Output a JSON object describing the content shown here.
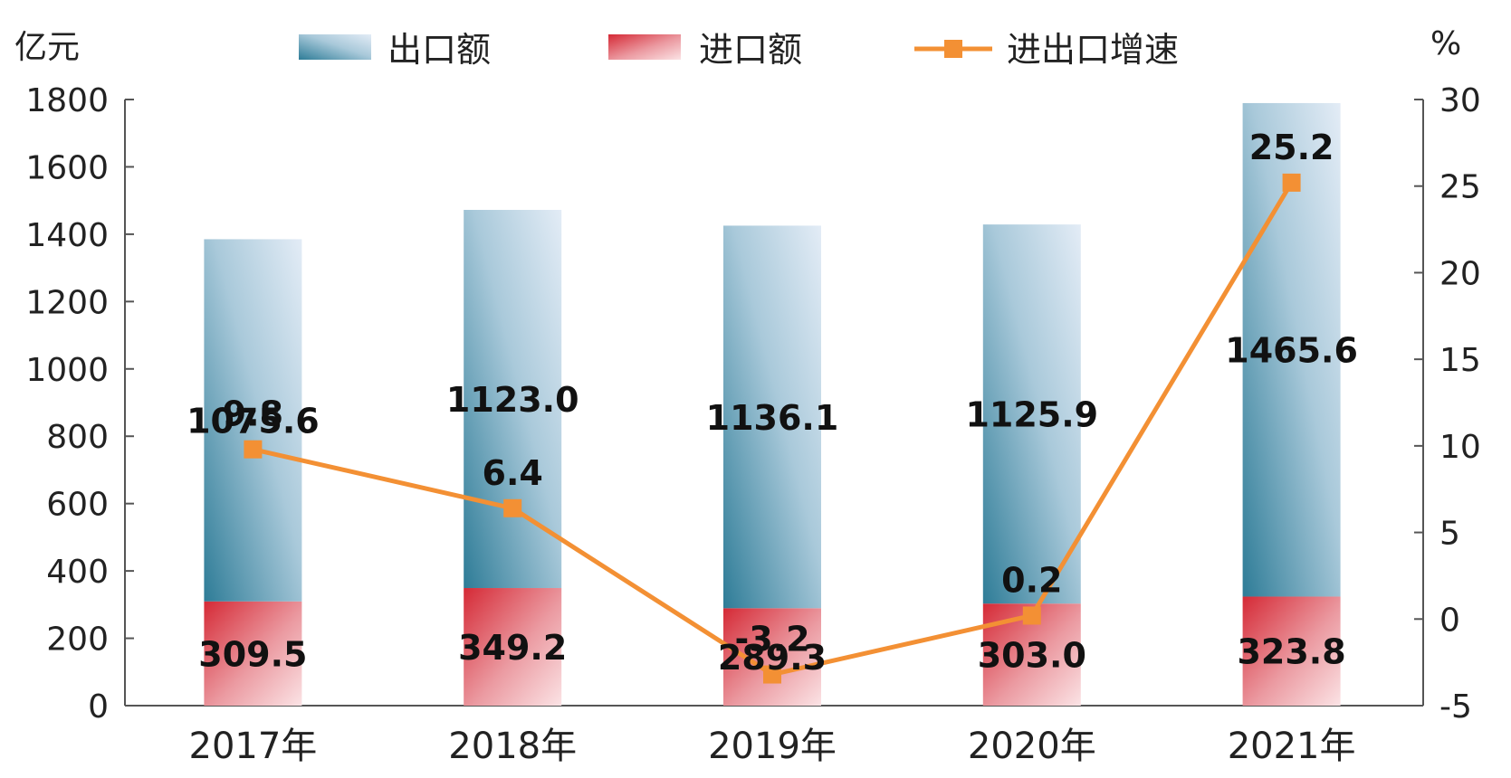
{
  "chart_data": {
    "type": "bar",
    "categories": [
      "2017年",
      "2018年",
      "2019年",
      "2020年",
      "2021年"
    ],
    "series": [
      {
        "name": "出口额",
        "kind": "bar",
        "stack": "total",
        "axis": "left",
        "values": [
          1075.6,
          1123.0,
          1136.1,
          1125.9,
          1465.6
        ],
        "color": "#2e7c97"
      },
      {
        "name": "进口额",
        "kind": "bar",
        "stack": "total",
        "axis": "left",
        "values": [
          309.5,
          349.2,
          289.3,
          303.0,
          323.8
        ],
        "color": "#d52a36"
      },
      {
        "name": "进出口增速",
        "kind": "line",
        "axis": "right",
        "values": [
          9.8,
          6.4,
          -3.2,
          0.2,
          25.2
        ],
        "color": "#f39034"
      }
    ],
    "y_left": {
      "label": "亿元",
      "ylim": [
        0,
        1800
      ],
      "ticks": [
        0,
        200,
        400,
        600,
        800,
        1000,
        1200,
        1400,
        1600,
        1800
      ]
    },
    "y_right": {
      "label": "%",
      "ylim": [
        -5,
        30
      ],
      "ticks": [
        -5,
        0,
        5,
        10,
        15,
        20,
        25,
        30
      ]
    },
    "grid": false,
    "legend": "top-center"
  }
}
